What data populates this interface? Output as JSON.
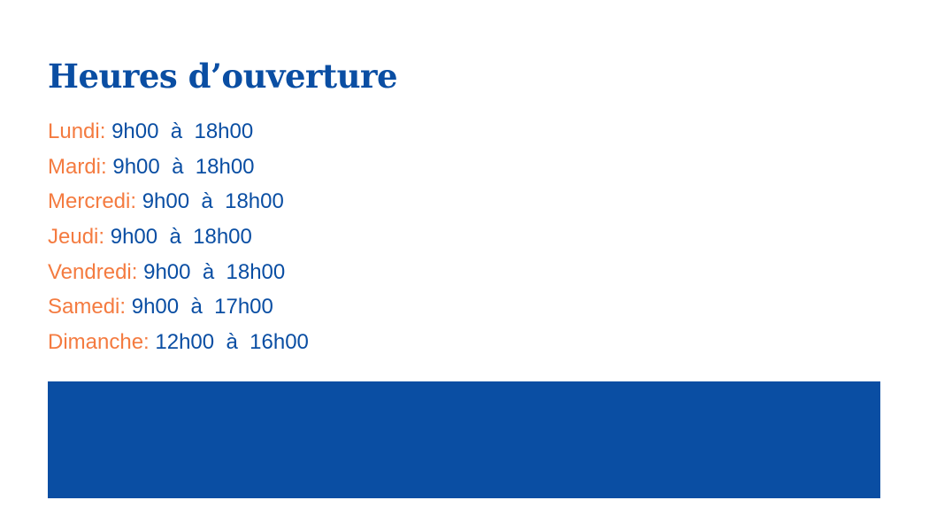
{
  "title": "Heures d’ouverture",
  "hours": [
    {
      "day": "Lundi:",
      "time": "9h00  à  18h00"
    },
    {
      "day": "Mardi:",
      "time": "9h00  à  18h00"
    },
    {
      "day": "Mercredi:",
      "time": "9h00  à  18h00"
    },
    {
      "day": "Jeudi:",
      "time": "9h00  à  18h00"
    },
    {
      "day": "Vendredi:",
      "time": "9h00  à  18h00"
    },
    {
      "day": "Samedi:",
      "time": "9h00  à  17h00"
    },
    {
      "day": "Dimanche:",
      "time": "12h00  à  16h00"
    }
  ],
  "colors": {
    "primary": "#0a4ea3",
    "accent": "#f47b40"
  }
}
